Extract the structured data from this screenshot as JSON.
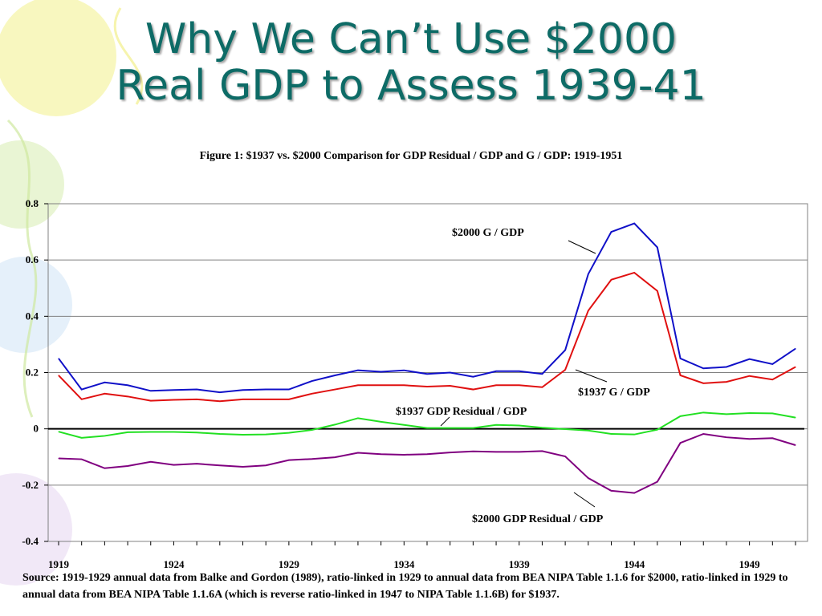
{
  "slide": {
    "title_line1": "Why We Can’t Use $2000",
    "title_line2": "Real GDP to Assess 1939-41"
  },
  "colors": {
    "title": "#0d6b66",
    "g2000": "#1010c8",
    "g1937": "#e01010",
    "res1937": "#22e022",
    "res2000": "#800080",
    "deco_yellow": "#f2f08a",
    "deco_green": "#cfe8a0",
    "deco_blue": "#cfe3f5",
    "deco_purple": "#e6d6f0"
  },
  "chart_data": {
    "type": "line",
    "title": "Figure 1: $1937 vs. $2000 Comparison for GDP Residual / GDP and G / GDP: 1919-1951",
    "x": [
      1919,
      1920,
      1921,
      1922,
      1923,
      1924,
      1925,
      1926,
      1927,
      1928,
      1929,
      1930,
      1931,
      1932,
      1933,
      1934,
      1935,
      1936,
      1937,
      1938,
      1939,
      1940,
      1941,
      1942,
      1943,
      1944,
      1945,
      1946,
      1947,
      1948,
      1949,
      1950,
      1951
    ],
    "x_tick_labels": [
      "1919",
      "1924",
      "1929",
      "1934",
      "1939",
      "1944",
      "1949"
    ],
    "y_tick_labels": [
      "0.8",
      "0.6",
      "0.4",
      "0.2",
      "0",
      "-0.2",
      "-0.4"
    ],
    "ylim": [
      -0.4,
      0.8
    ],
    "grid": true,
    "series": [
      {
        "name": "$2000 G / GDP",
        "color": "#1010c8",
        "values": [
          0.25,
          0.14,
          0.165,
          0.155,
          0.135,
          0.138,
          0.14,
          0.13,
          0.138,
          0.14,
          0.14,
          0.17,
          0.19,
          0.208,
          0.203,
          0.208,
          0.195,
          0.2,
          0.185,
          0.205,
          0.205,
          0.195,
          0.28,
          0.55,
          0.7,
          0.73,
          0.645,
          0.25,
          0.215,
          0.22,
          0.248,
          0.23,
          0.285
        ]
      },
      {
        "name": "$1937 G / GDP",
        "color": "#e01010",
        "values": [
          0.19,
          0.105,
          0.125,
          0.115,
          0.1,
          0.103,
          0.105,
          0.098,
          0.105,
          0.105,
          0.105,
          0.125,
          0.14,
          0.155,
          0.155,
          0.155,
          0.15,
          0.153,
          0.14,
          0.155,
          0.155,
          0.148,
          0.21,
          0.42,
          0.53,
          0.555,
          0.49,
          0.19,
          0.162,
          0.167,
          0.188,
          0.175,
          0.22
        ]
      },
      {
        "name": "$1937 GDP Residual / GDP",
        "color": "#22e022",
        "values": [
          -0.01,
          -0.032,
          -0.025,
          -0.012,
          -0.011,
          -0.011,
          -0.013,
          -0.018,
          -0.021,
          -0.02,
          -0.014,
          -0.004,
          0.015,
          0.038,
          0.025,
          0.014,
          0.003,
          0.003,
          0.003,
          0.014,
          0.012,
          0.004,
          -0.001,
          -0.006,
          -0.018,
          -0.02,
          -0.003,
          0.045,
          0.058,
          0.052,
          0.056,
          0.055,
          0.04
        ]
      },
      {
        "name": "$2000 GDP Residual / GDP",
        "color": "#800080",
        "values": [
          -0.105,
          -0.108,
          -0.14,
          -0.132,
          -0.117,
          -0.128,
          -0.124,
          -0.13,
          -0.135,
          -0.13,
          -0.111,
          -0.107,
          -0.101,
          -0.085,
          -0.09,
          -0.092,
          -0.09,
          -0.084,
          -0.08,
          -0.082,
          -0.082,
          -0.079,
          -0.098,
          -0.175,
          -0.22,
          -0.228,
          -0.188,
          -0.05,
          -0.018,
          -0.03,
          -0.036,
          -0.033,
          -0.058
        ]
      }
    ],
    "annotations": {
      "g2000": "$2000 G / GDP",
      "g1937": "$1937 G / GDP",
      "res1937": "$1937 GDP Residual / GDP",
      "res2000": "$2000 GDP Residual / GDP"
    }
  },
  "source_note": "Source: 1919-1929 annual data from Balke and Gordon (1989), ratio-linked in 1929 to annual data from BEA NIPA Table 1.1.6 for $2000, ratio-linked in 1929 to annual data from BEA NIPA Table 1.1.6A (which is reverse ratio-linked in 1947 to NIPA Table 1.1.6B) for $1937."
}
